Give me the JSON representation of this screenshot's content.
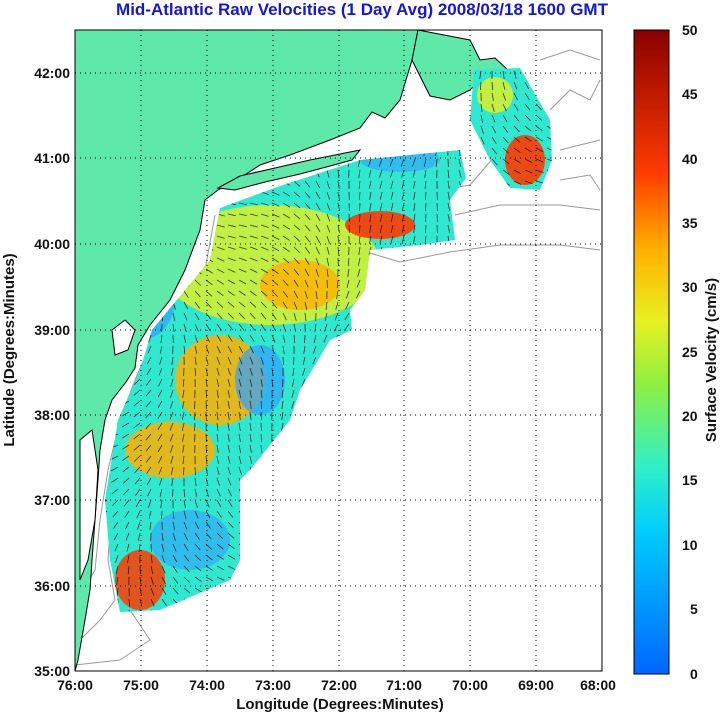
{
  "title": "Mid-Atlantic Raw Velocities (1 Day Avg) 2008/03/18 1600 GMT",
  "map": {
    "xlabel": "Longitude (Degrees:Minutes)",
    "ylabel": "Latitude (Degrees:Minutes)",
    "x_ticks": [
      "76:00",
      "75:00",
      "74:00",
      "73:00",
      "72:00",
      "71:00",
      "70:00",
      "69:00",
      "68:00"
    ],
    "y_ticks": [
      "42:00",
      "41:00",
      "40:00",
      "39:00",
      "38:00",
      "37:00",
      "36:00",
      "35:00"
    ],
    "lon_range": [
      -76,
      -68
    ],
    "lat_range": [
      35,
      42.5
    ],
    "grid": "dotted",
    "land_color": "#5ee8a9",
    "coast_color": "#000000",
    "bathymetry_color": "#9a9a9a"
  },
  "colorbar": {
    "label": "Surface Velocity (cm/s)",
    "ticks": [
      "50",
      "45",
      "40",
      "35",
      "30",
      "25",
      "20",
      "15",
      "10",
      "5",
      "0"
    ],
    "range": [
      0,
      50
    ],
    "colormap": "jet"
  }
}
